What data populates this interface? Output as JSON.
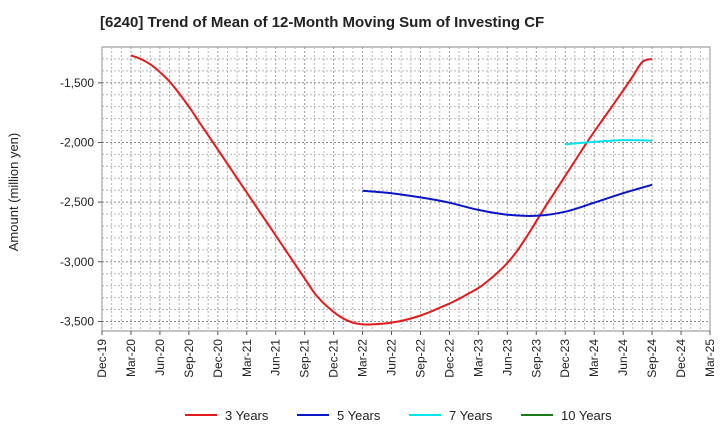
{
  "chart_data": {
    "type": "line",
    "title": "[6240]  Trend of Mean of 12-Month Moving Sum of Investing CF",
    "ylabel": "Amount (million yen)",
    "xlabel": "",
    "categories": [
      "Dec-19",
      "Mar-20",
      "Jun-20",
      "Sep-20",
      "Dec-20",
      "Mar-21",
      "Jun-21",
      "Sep-21",
      "Dec-21",
      "Mar-22",
      "Jun-22",
      "Sep-22",
      "Dec-22",
      "Mar-23",
      "Jun-23",
      "Sep-23",
      "Dec-23",
      "Mar-24",
      "Jun-24",
      "Sep-24",
      "Dec-24",
      "Mar-25"
    ],
    "yticks": [
      -3500,
      -3000,
      -2500,
      -2000,
      -1500
    ],
    "ytick_labels": [
      "-3,500",
      "-3,000",
      "-2,500",
      "-2,000",
      "-1,500"
    ],
    "ylim": [
      -3580,
      -1200
    ],
    "grid": true,
    "legend_position": "bottom",
    "series": [
      {
        "name": "3 Years",
        "color": "#e41a1c",
        "points": [
          [
            "Mar-20",
            -1270
          ],
          [
            "Apr-20",
            -1300
          ],
          [
            "May-20",
            -1345
          ],
          [
            "Jun-20",
            -1410
          ],
          [
            "Jul-20",
            -1490
          ],
          [
            "Aug-20",
            -1590
          ],
          [
            "Sep-20",
            -1700
          ],
          [
            "Oct-20",
            -1820
          ],
          [
            "Nov-20",
            -1940
          ],
          [
            "Dec-20",
            -2060
          ],
          [
            "Jan-21",
            -2180
          ],
          [
            "Feb-21",
            -2300
          ],
          [
            "Mar-21",
            -2420
          ],
          [
            "Apr-21",
            -2540
          ],
          [
            "May-21",
            -2660
          ],
          [
            "Jun-21",
            -2780
          ],
          [
            "Jul-21",
            -2900
          ],
          [
            "Aug-21",
            -3020
          ],
          [
            "Sep-21",
            -3140
          ],
          [
            "Oct-21",
            -3260
          ],
          [
            "Nov-21",
            -3350
          ],
          [
            "Dec-21",
            -3420
          ],
          [
            "Jan-22",
            -3475
          ],
          [
            "Feb-22",
            -3510
          ],
          [
            "Mar-22",
            -3525
          ],
          [
            "Apr-22",
            -3525
          ],
          [
            "May-22",
            -3520
          ],
          [
            "Jun-22",
            -3510
          ],
          [
            "Jul-22",
            -3495
          ],
          [
            "Aug-22",
            -3475
          ],
          [
            "Sep-22",
            -3450
          ],
          [
            "Oct-22",
            -3420
          ],
          [
            "Nov-22",
            -3385
          ],
          [
            "Dec-22",
            -3350
          ],
          [
            "Jan-23",
            -3310
          ],
          [
            "Feb-23",
            -3265
          ],
          [
            "Mar-23",
            -3220
          ],
          [
            "Apr-23",
            -3160
          ],
          [
            "May-23",
            -3090
          ],
          [
            "Jun-23",
            -3010
          ],
          [
            "Jul-23",
            -2910
          ],
          [
            "Aug-23",
            -2790
          ],
          [
            "Sep-23",
            -2660
          ],
          [
            "Oct-23",
            -2530
          ],
          [
            "Nov-23",
            -2405
          ],
          [
            "Dec-23",
            -2280
          ],
          [
            "Jan-24",
            -2155
          ],
          [
            "Feb-24",
            -2030
          ],
          [
            "Mar-24",
            -1910
          ],
          [
            "Apr-24",
            -1795
          ],
          [
            "May-24",
            -1680
          ],
          [
            "Jun-24",
            -1565
          ],
          [
            "Jul-24",
            -1445
          ],
          [
            "Aug-24",
            -1325
          ],
          [
            "Sep-24",
            -1300
          ]
        ]
      },
      {
        "name": "5 Years",
        "color": "#0a14c8",
        "points": [
          [
            "Mar-22",
            -2405
          ],
          [
            "Jun-22",
            -2425
          ],
          [
            "Sep-22",
            -2460
          ],
          [
            "Dec-22",
            -2505
          ],
          [
            "Mar-23",
            -2565
          ],
          [
            "Jun-23",
            -2605
          ],
          [
            "Sep-23",
            -2615
          ],
          [
            "Dec-23",
            -2580
          ],
          [
            "Mar-24",
            -2505
          ],
          [
            "Jun-24",
            -2425
          ],
          [
            "Sep-24",
            -2355
          ]
        ]
      },
      {
        "name": "7 Years",
        "color": "#00e5ee",
        "points": [
          [
            "Dec-23",
            -2015
          ],
          [
            "Mar-24",
            -1995
          ],
          [
            "Jun-24",
            -1980
          ],
          [
            "Sep-24",
            -1985
          ]
        ]
      },
      {
        "name": "10 Years",
        "color": "#1a7a1a",
        "points": []
      }
    ]
  }
}
